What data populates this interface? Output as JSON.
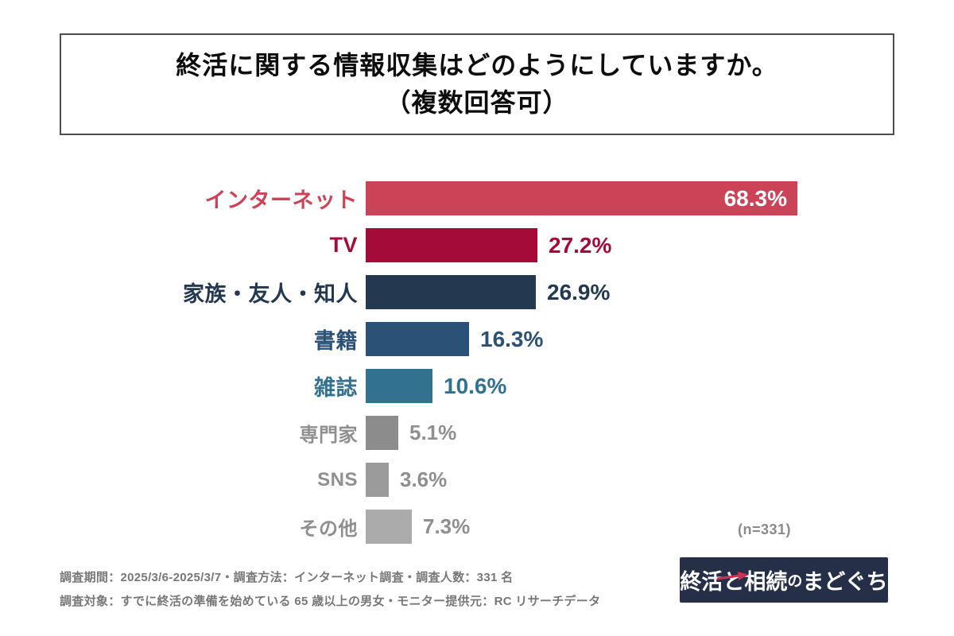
{
  "title": {
    "line1": "終活に関する情報収集はどのようにしていますか。",
    "line2": "（複数回答可）"
  },
  "chart_data": {
    "type": "bar",
    "orientation": "horizontal",
    "title": "終活に関する情報収集はどのようにしていますか。（複数回答可）",
    "categories": [
      "インターネット",
      "TV",
      "家族・友人・知人",
      "書籍",
      "雑誌",
      "専門家",
      "SNS",
      "その他"
    ],
    "values": [
      68.3,
      27.2,
      26.9,
      16.3,
      10.6,
      5.1,
      3.6,
      7.3
    ],
    "value_labels": [
      "68.3%",
      "27.2%",
      "26.9%",
      "16.3%",
      "10.6%",
      "5.1%",
      "3.6%",
      "7.3%"
    ],
    "bar_colors": [
      "#cc4257",
      "#a50b38",
      "#243850",
      "#2b5176",
      "#32718f",
      "#8c8c8c",
      "#9b9b9b",
      "#ababab"
    ],
    "label_colors": [
      "#cc4257",
      "#a50b38",
      "#243850",
      "#2b5176",
      "#32718f",
      "#8f8f8f",
      "#8f8f8f",
      "#8f8f8f"
    ],
    "value_text_colors": [
      "#ffffff",
      "#a50b38",
      "#243850",
      "#2b5176",
      "#32718f",
      "#8f8f8f",
      "#8f8f8f",
      "#8f8f8f"
    ],
    "value_positions": [
      "inside",
      "outside",
      "outside",
      "outside",
      "outside",
      "outside",
      "outside",
      "outside"
    ],
    "sample_size_label": "(n=331)",
    "xlim": [
      0,
      70
    ],
    "grid": false,
    "legend": false
  },
  "footer": {
    "line1": "調査期間：2025/3/6-2025/3/7・調査方法：インターネット調査・調査人数：331 名",
    "line2": "調査対象：すでに終活の準備を始めている 65 歳以上の男女・モニター提供元：RC リサーチデータ"
  },
  "logo": {
    "part1": "終活",
    "part2": "と",
    "part3": "相続",
    "part4": "の",
    "part5": "まどぐち",
    "background": "#262f48",
    "text_color": "#ffffff",
    "accent_color": "#cf3150"
  }
}
